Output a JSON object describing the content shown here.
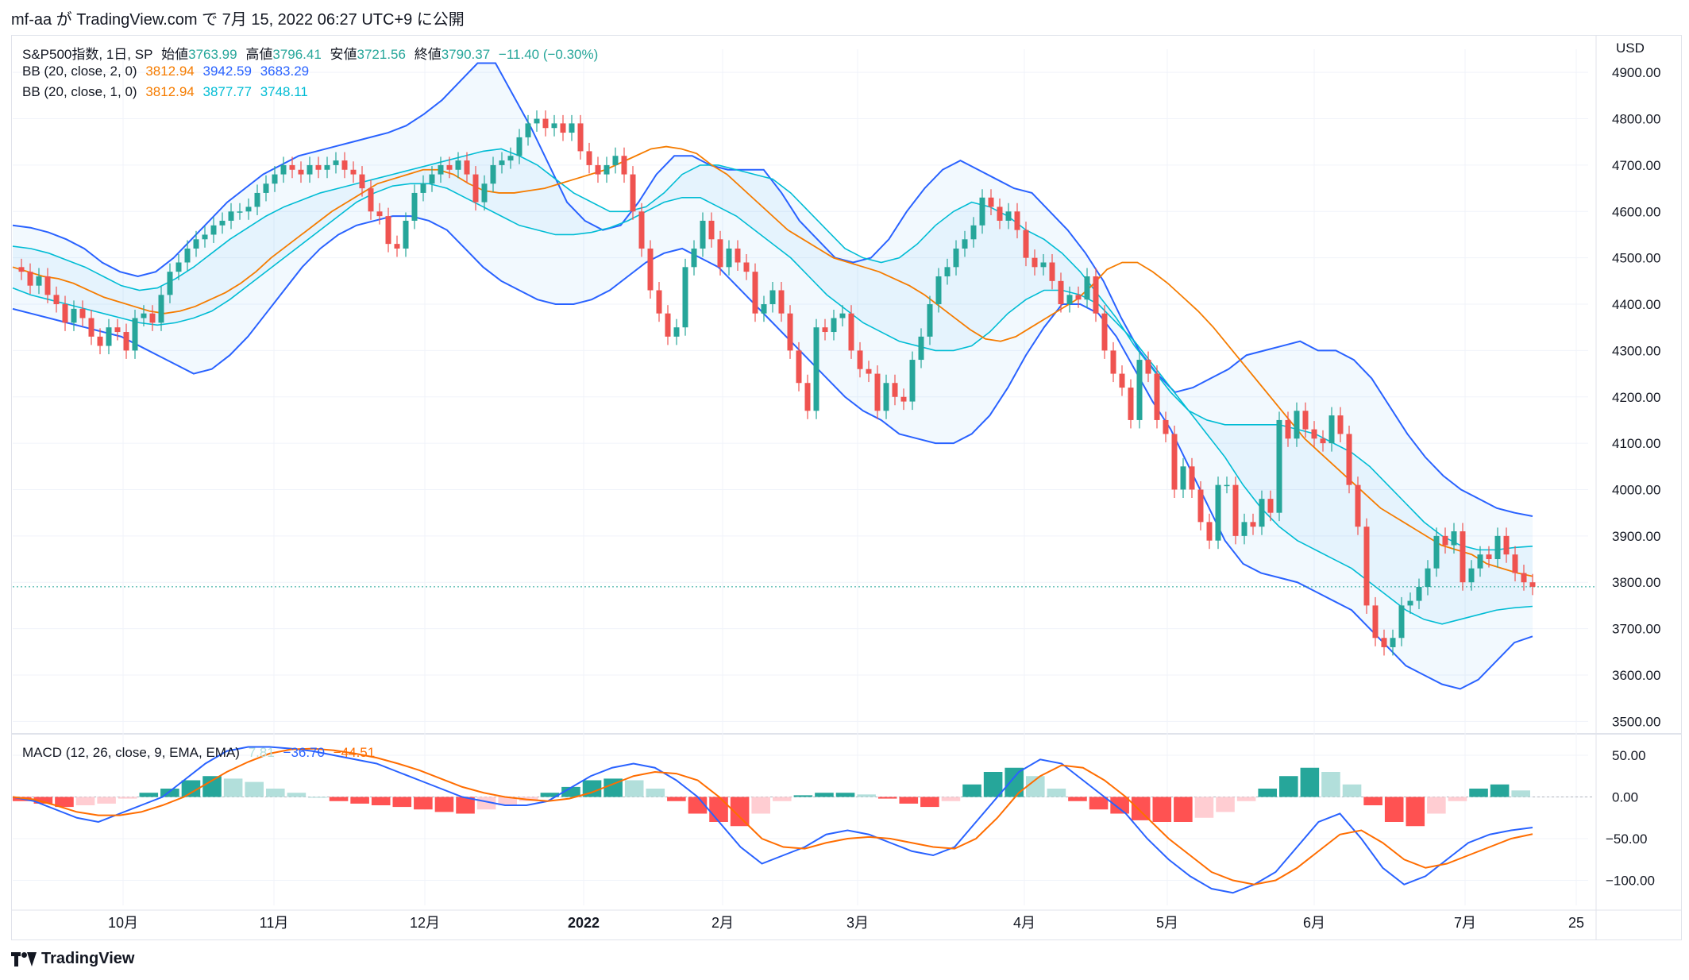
{
  "header": {
    "publish_line": "mf-aa が TradingView.com で 7月 15, 2022 06:27 UTC+9 に公開"
  },
  "footer": {
    "brand": "TradingView"
  },
  "legend": {
    "symbol": "S&P500指数, 1日, SP",
    "open_label": "始値",
    "open_value": "3763.99",
    "high_label": "高値",
    "high_value": "3796.41",
    "low_label": "安値",
    "low_value": "3721.56",
    "close_label": "終値",
    "close_value": "3790.37",
    "change": "−11.40 (−0.30%)",
    "bb2_label": "BB (20, close, 2, 0)",
    "bb2_mid": "3812.94",
    "bb2_up": "3942.59",
    "bb2_low": "3683.29",
    "bb1_label": "BB (20, close, 1, 0)",
    "bb1_mid": "3812.94",
    "bb1_up": "3877.77",
    "bb1_low": "3748.11",
    "macd_label": "MACD (12, 26, close, 9, EMA, EMA)",
    "macd_hist": "7.81",
    "macd_line": "−36.70",
    "macd_signal": "−44.51"
  },
  "colors": {
    "up": "#26a69a",
    "down": "#ef5350",
    "bb_mid": "#f57c00",
    "bb_outer": "#2962ff",
    "bb_inner": "#00bcd4",
    "hist_up_strong": "#26a69a",
    "hist_up_weak": "#b2dfdb",
    "hist_down_strong": "#ff5252",
    "hist_down_weak": "#ffcdd2",
    "macd_line": "#2962ff",
    "signal_line": "#ff6d00"
  },
  "chart_data": [
    {
      "type": "candlestick",
      "title": "S&P500指数, 1日, SP",
      "currency": "USD",
      "ylim": [
        3480,
        4950
      ],
      "yticks": [
        "3500.00",
        "3600.00",
        "3700.00",
        "3800.00",
        "3900.00",
        "4000.00",
        "4100.00",
        "4200.00",
        "4300.00",
        "4400.00",
        "4500.00",
        "4600.00",
        "4700.00",
        "4800.00",
        "4900.00"
      ],
      "x_labels": [
        "10月",
        "11月",
        "12月",
        "2022",
        "2月",
        "3月",
        "4月",
        "5月",
        "6月",
        "7月",
        "25"
      ],
      "last_close": 3790.37,
      "close_series": [
        4480,
        4470,
        4440,
        4460,
        4420,
        4400,
        4360,
        4390,
        4370,
        4330,
        4310,
        4350,
        4340,
        4300,
        4370,
        4380,
        4360,
        4420,
        4470,
        4490,
        4520,
        4540,
        4550,
        4570,
        4580,
        4600,
        4600,
        4610,
        4640,
        4660,
        4680,
        4700,
        4690,
        4680,
        4700,
        4690,
        4700,
        4710,
        4690,
        4680,
        4650,
        4600,
        4590,
        4530,
        4520,
        4580,
        4640,
        4660,
        4680,
        4700,
        4690,
        4710,
        4680,
        4620,
        4660,
        4700,
        4710,
        4720,
        4760,
        4790,
        4800,
        4780,
        4790,
        4770,
        4790,
        4730,
        4700,
        4680,
        4700,
        4720,
        4680,
        4600,
        4520,
        4430,
        4380,
        4330,
        4350,
        4480,
        4520,
        4580,
        4540,
        4480,
        4520,
        4490,
        4470,
        4380,
        4400,
        4430,
        4380,
        4300,
        4230,
        4170,
        4350,
        4340,
        4370,
        4380,
        4300,
        4260,
        4250,
        4170,
        4230,
        4200,
        4190,
        4280,
        4330,
        4400,
        4460,
        4480,
        4520,
        4540,
        4570,
        4630,
        4610,
        4580,
        4600,
        4560,
        4500,
        4480,
        4490,
        4450,
        4400,
        4420,
        4410,
        4460,
        4380,
        4300,
        4250,
        4220,
        4150,
        4280,
        4250,
        4150,
        4120,
        4000,
        4050,
        4000,
        3930,
        3890,
        4010,
        4010,
        3900,
        3930,
        3920,
        3980,
        3950,
        4150,
        4110,
        4170,
        4130,
        4110,
        4100,
        4160,
        4120,
        4010,
        3920,
        3750,
        3680,
        3660,
        3680,
        3750,
        3760,
        3790,
        3830,
        3900,
        3880,
        3910,
        3800,
        3830,
        3860,
        3850,
        3900,
        3860,
        3820,
        3800,
        3790.37
      ],
      "bb": {
        "basis": [
          4480,
          4470,
          4460,
          4455,
          4445,
          4430,
          4415,
          4405,
          4395,
          4385,
          4380,
          4385,
          4395,
          4410,
          4425,
          4445,
          4470,
          4500,
          4525,
          4550,
          4575,
          4600,
          4620,
          4640,
          4660,
          4670,
          4680,
          4690,
          4690,
          4680,
          4660,
          4645,
          4640,
          4640,
          4645,
          4650,
          4660,
          4670,
          4680,
          4690,
          4705,
          4720,
          4735,
          4740,
          4735,
          4725,
          4700,
          4680,
          4650,
          4620,
          4590,
          4560,
          4540,
          4520,
          4500,
          4490,
          4480,
          4470,
          4455,
          4440,
          4420,
          4395,
          4370,
          4345,
          4325,
          4320,
          4330,
          4350,
          4370,
          4390,
          4410,
          4440,
          4475,
          4490,
          4490,
          4470,
          4445,
          4415,
          4385,
          4350,
          4310,
          4270,
          4230,
          4190,
          4150,
          4110,
          4080,
          4050,
          4020,
          3990,
          3960,
          3940,
          3920,
          3900,
          3880,
          3870,
          3860,
          3840,
          3830,
          3820,
          3812.94
        ],
        "upper2": [
          4570,
          4565,
          4555,
          4540,
          4520,
          4490,
          4470,
          4460,
          4470,
          4500,
          4540,
          4580,
          4620,
          4650,
          4680,
          4700,
          4720,
          4730,
          4740,
          4750,
          4760,
          4770,
          4785,
          4810,
          4840,
          4880,
          4920,
          4920,
          4850,
          4780,
          4700,
          4620,
          4580,
          4560,
          4570,
          4620,
          4680,
          4720,
          4720,
          4700,
          4690,
          4690,
          4690,
          4640,
          4580,
          4540,
          4500,
          4490,
          4500,
          4540,
          4600,
          4650,
          4690,
          4710,
          4690,
          4670,
          4650,
          4640,
          4600,
          4560,
          4510,
          4450,
          4370,
          4300,
          4250,
          4210,
          4220,
          4240,
          4260,
          4290,
          4300,
          4310,
          4320,
          4300,
          4300,
          4280,
          4240,
          4180,
          4120,
          4070,
          4030,
          4000,
          3980,
          3960,
          3950,
          3942.59
        ],
        "upper1": [
          4525,
          4520,
          4510,
          4495,
          4480,
          4460,
          4440,
          4430,
          4435,
          4455,
          4480,
          4510,
          4540,
          4565,
          4590,
          4610,
          4625,
          4640,
          4650,
          4660,
          4670,
          4680,
          4690,
          4700,
          4710,
          4720,
          4730,
          4735,
          4720,
          4700,
          4670,
          4640,
          4620,
          4600,
          4600,
          4610,
          4640,
          4680,
          4700,
          4700,
          4690,
          4680,
          4670,
          4640,
          4600,
          4560,
          4520,
          4500,
          4490,
          4500,
          4530,
          4570,
          4600,
          4620,
          4610,
          4590,
          4560,
          4540,
          4510,
          4470,
          4420,
          4370,
          4310,
          4260,
          4210,
          4170,
          4150,
          4140,
          4140,
          4140,
          4140,
          4130,
          4120,
          4100,
          4080,
          4050,
          4010,
          3970,
          3930,
          3900,
          3880,
          3870,
          3870,
          3875,
          3877.77
        ],
        "lower1": [
          4435,
          4420,
          4410,
          4400,
          4390,
          4380,
          4370,
          4360,
          4355,
          4360,
          4370,
          4385,
          4410,
          4440,
          4470,
          4500,
          4530,
          4560,
          4590,
          4620,
          4640,
          4655,
          4660,
          4660,
          4650,
          4630,
          4610,
          4590,
          4570,
          4560,
          4550,
          4550,
          4555,
          4565,
          4580,
          4600,
          4620,
          4630,
          4630,
          4610,
          4590,
          4560,
          4530,
          4500,
          4460,
          4420,
          4390,
          4360,
          4340,
          4320,
          4310,
          4300,
          4300,
          4310,
          4340,
          4380,
          4410,
          4430,
          4430,
          4420,
          4400,
          4360,
          4320,
          4270,
          4220,
          4170,
          4120,
          4070,
          4010,
          3960,
          3920,
          3890,
          3870,
          3850,
          3830,
          3800,
          3770,
          3740,
          3720,
          3710,
          3720,
          3730,
          3740,
          3745,
          3748.11
        ],
        "lower2": [
          4390,
          4380,
          4370,
          4360,
          4350,
          4340,
          4330,
          4310,
          4290,
          4270,
          4250,
          4260,
          4290,
          4330,
          4380,
          4430,
          4480,
          4520,
          4550,
          4570,
          4580,
          4590,
          4590,
          4580,
          4560,
          4520,
          4480,
          4450,
          4430,
          4410,
          4400,
          4400,
          4410,
          4430,
          4460,
          4490,
          4510,
          4520,
          4500,
          4480,
          4440,
          4400,
          4360,
          4320,
          4280,
          4240,
          4200,
          4170,
          4150,
          4120,
          4110,
          4100,
          4100,
          4120,
          4160,
          4220,
          4290,
          4350,
          4400,
          4400,
          4380,
          4330,
          4260,
          4190,
          4130,
          4050,
          3970,
          3890,
          3840,
          3820,
          3810,
          3800,
          3780,
          3760,
          3740,
          3700,
          3660,
          3620,
          3600,
          3580,
          3570,
          3590,
          3630,
          3670,
          3683.29
        ]
      }
    },
    {
      "type": "histogram+line",
      "title": "MACD (12, 26, close, 9, EMA, EMA)",
      "ylim": [
        -130,
        70
      ],
      "yticks": [
        "50.00",
        "0.00",
        "−50.00",
        "−100.00"
      ],
      "macd": [
        0,
        -5,
        -15,
        -25,
        -30,
        -20,
        -10,
        0,
        20,
        40,
        55,
        60,
        60,
        58,
        55,
        50,
        45,
        40,
        30,
        20,
        10,
        0,
        -5,
        -10,
        -10,
        -5,
        10,
        25,
        35,
        40,
        35,
        20,
        0,
        -30,
        -60,
        -80,
        -70,
        -60,
        -45,
        -40,
        -45,
        -55,
        -65,
        -70,
        -60,
        -30,
        0,
        30,
        45,
        40,
        20,
        0,
        -20,
        -50,
        -75,
        -95,
        -110,
        -115,
        -105,
        -90,
        -60,
        -30,
        -20,
        -50,
        -85,
        -105,
        -95,
        -75,
        -55,
        -45,
        -40,
        -36.7
      ],
      "signal": [
        0,
        -3,
        -10,
        -18,
        -22,
        -22,
        -18,
        -10,
        0,
        15,
        30,
        42,
        52,
        57,
        58,
        56,
        52,
        47,
        40,
        32,
        22,
        12,
        5,
        0,
        -3,
        -5,
        -2,
        5,
        15,
        25,
        30,
        28,
        20,
        0,
        -25,
        -50,
        -60,
        -62,
        -55,
        -50,
        -48,
        -50,
        -55,
        -60,
        -62,
        -50,
        -25,
        5,
        25,
        38,
        35,
        20,
        0,
        -25,
        -50,
        -70,
        -90,
        -100,
        -105,
        -100,
        -85,
        -65,
        -45,
        -40,
        -55,
        -75,
        -85,
        -80,
        -70,
        -60,
        -50,
        -44.51
      ],
      "histogram": [
        -5,
        -8,
        -12,
        -10,
        -8,
        -2,
        5,
        10,
        20,
        25,
        22,
        18,
        10,
        5,
        0,
        -5,
        -8,
        -10,
        -12,
        -15,
        -18,
        -20,
        -15,
        -10,
        -5,
        5,
        12,
        20,
        22,
        20,
        10,
        -5,
        -20,
        -30,
        -35,
        -20,
        -5,
        2,
        5,
        5,
        3,
        -2,
        -8,
        -12,
        -5,
        15,
        30,
        35,
        25,
        10,
        -5,
        -15,
        -20,
        -28,
        -30,
        -30,
        -25,
        -18,
        -5,
        10,
        25,
        35,
        30,
        15,
        -10,
        -30,
        -35,
        -20,
        -5,
        10,
        15,
        7.81
      ]
    }
  ]
}
